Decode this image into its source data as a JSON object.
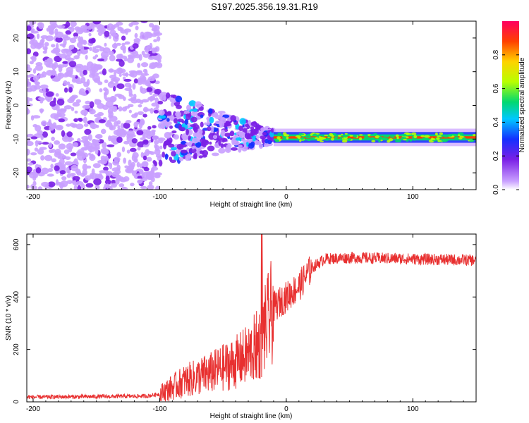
{
  "title": "S197.2025.356.19.31.R19",
  "chart_data": [
    {
      "type": "heatmap",
      "xlabel": "Height of straight line (km)",
      "ylabel": "Frequency (Hz)",
      "xlim": [
        -205,
        150
      ],
      "ylim": [
        -25,
        25
      ],
      "xticks": [
        -200,
        -100,
        0,
        100
      ],
      "yticks": [
        -20,
        -10,
        0,
        10,
        20
      ],
      "colorbar": {
        "label": "Normalized spectral amplitude",
        "range": [
          0,
          1
        ],
        "ticks": [
          "0.0",
          "0.2",
          "0.4",
          "0.6",
          "0.8"
        ],
        "tick_values": [
          0,
          0.2,
          0.4,
          0.6,
          0.8
        ],
        "colors": [
          "#ffffff",
          "#c9a0ff",
          "#7a1fe6",
          "#1430ff",
          "#00c8ff",
          "#00d870",
          "#b8ff00",
          "#ffd200",
          "#ff4000",
          "#ff0060"
        ]
      },
      "noise_region_x": [
        -205,
        -100
      ],
      "transition_region_x": [
        -100,
        -10
      ],
      "signal_frequency_hz": -9.5,
      "signal_region_x": [
        -10,
        150
      ]
    },
    {
      "type": "line",
      "xlabel": "Height of straight line (km)",
      "ylabel": "SNR (10 * v/v)",
      "xlim": [
        -205,
        150
      ],
      "ylim": [
        0,
        640
      ],
      "xticks": [
        -200,
        -100,
        0,
        100
      ],
      "yticks": [
        0,
        200,
        400,
        600
      ],
      "series": [
        {
          "name": "SNR",
          "color": "#e83030",
          "x": [
            -205,
            -150,
            -110,
            -100,
            -90,
            -80,
            -60,
            -40,
            -30,
            -20,
            -15,
            -10,
            0,
            10,
            20,
            30,
            50,
            100,
            150
          ],
          "y": [
            18,
            20,
            22,
            30,
            55,
            80,
            110,
            150,
            180,
            230,
            300,
            360,
            400,
            440,
            510,
            545,
            550,
            545,
            540
          ]
        }
      ]
    }
  ]
}
